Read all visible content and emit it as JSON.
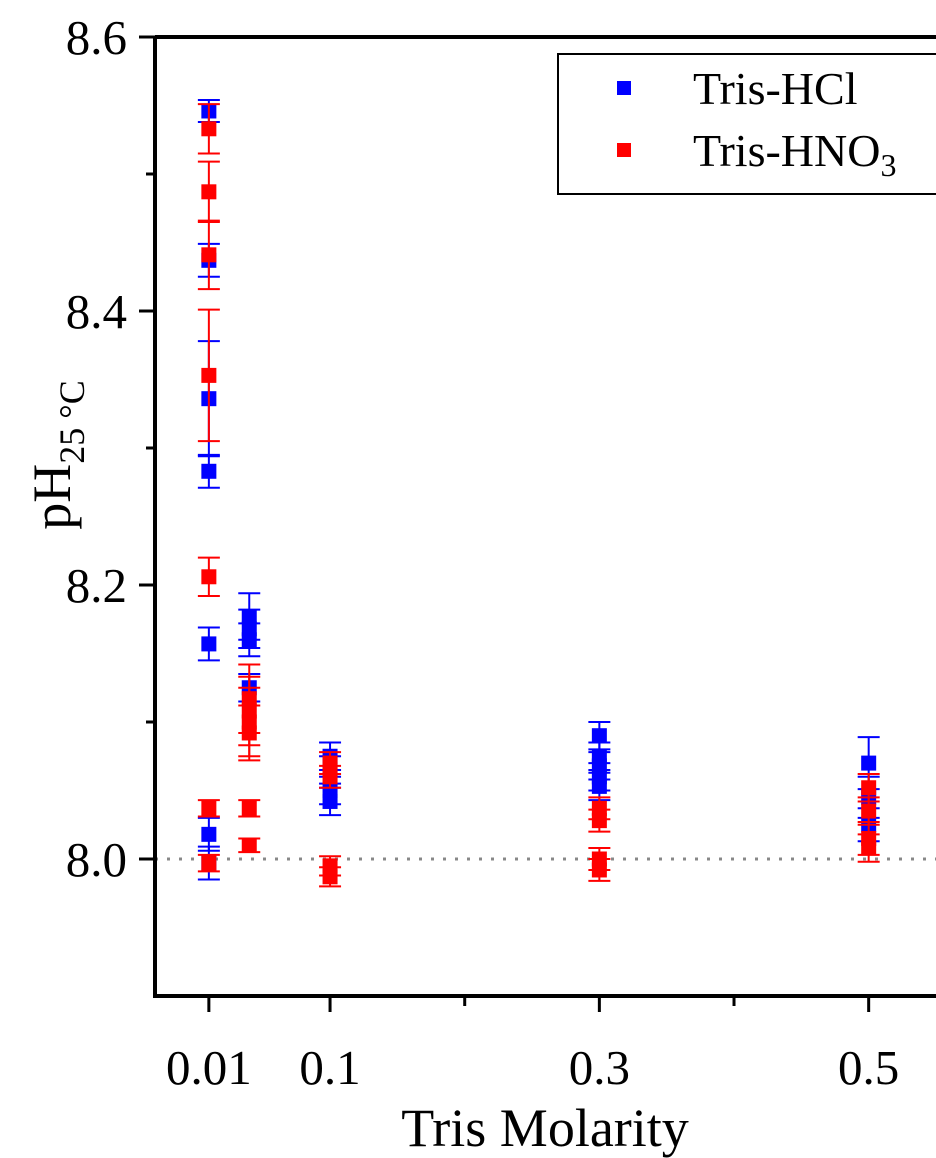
{
  "chart_data": {
    "type": "scatter",
    "title": "",
    "xlabel": "Tris Molarity",
    "ylabel": {
      "main": "pH",
      "subscript": "25 °C"
    },
    "xlim": [
      -0.03,
      0.55
    ],
    "ylim": [
      7.9,
      8.6
    ],
    "x_ticks": [
      {
        "value": 0.01,
        "label": "0.01"
      },
      {
        "value": 0.1,
        "label": "0.1"
      },
      {
        "value": 0.3,
        "label": "0.3"
      },
      {
        "value": 0.5,
        "label": "0.5"
      }
    ],
    "x_minor_ticks": [
      0.2,
      0.4
    ],
    "y_ticks": [
      {
        "value": 8.0,
        "label": "8.0"
      },
      {
        "value": 8.2,
        "label": "8.2"
      },
      {
        "value": 8.4,
        "label": "8.4"
      },
      {
        "value": 8.6,
        "label": "8.6"
      }
    ],
    "y_minor_ticks": [
      8.1,
      8.3,
      8.5
    ],
    "reference_line": {
      "y": 8.0,
      "style": "dotted",
      "color": "#888888"
    },
    "grid": false,
    "legend": {
      "position": "top-right",
      "frame": true
    },
    "series": [
      {
        "name": "Tris-HCl",
        "name_parts": {
          "main": "Tris-HCl",
          "subscript": ""
        },
        "color": "#0000ff",
        "marker": "square",
        "points": [
          {
            "x": 0.01,
            "y": 8.546,
            "err": 0.008
          },
          {
            "x": 0.01,
            "y": 8.437,
            "err": 0.012
          },
          {
            "x": 0.01,
            "y": 8.336,
            "err": 0.042
          },
          {
            "x": 0.01,
            "y": 8.283,
            "err": 0.012
          },
          {
            "x": 0.01,
            "y": 8.157,
            "err": 0.012
          },
          {
            "x": 0.01,
            "y": 8.018,
            "err": 0.012
          },
          {
            "x": 0.01,
            "y": 7.997,
            "err": 0.012
          },
          {
            "x": 0.04,
            "y": 8.177,
            "err": 0.017
          },
          {
            "x": 0.04,
            "y": 8.168,
            "err": 0.014
          },
          {
            "x": 0.04,
            "y": 8.16,
            "err": 0.012
          },
          {
            "x": 0.04,
            "y": 8.125,
            "err": 0.01
          },
          {
            "x": 0.1,
            "y": 8.075,
            "err": 0.01
          },
          {
            "x": 0.1,
            "y": 8.065,
            "err": 0.01
          },
          {
            "x": 0.1,
            "y": 8.05,
            "err": 0.01
          },
          {
            "x": 0.1,
            "y": 8.042,
            "err": 0.01
          },
          {
            "x": 0.3,
            "y": 8.09,
            "err": 0.01
          },
          {
            "x": 0.3,
            "y": 8.075,
            "err": 0.01
          },
          {
            "x": 0.3,
            "y": 8.068,
            "err": 0.01
          },
          {
            "x": 0.3,
            "y": 8.06,
            "err": 0.01
          },
          {
            "x": 0.3,
            "y": 8.053,
            "err": 0.01
          },
          {
            "x": 0.5,
            "y": 8.07,
            "err": 0.019
          },
          {
            "x": 0.5,
            "y": 8.045,
            "err": 0.015
          },
          {
            "x": 0.5,
            "y": 8.025,
            "err": 0.012
          }
        ]
      },
      {
        "name": "Tris-HNO3",
        "name_parts": {
          "main": "Tris-HNO",
          "subscript": "3"
        },
        "color": "#ff0000",
        "marker": "square",
        "points": [
          {
            "x": 0.01,
            "y": 8.533,
            "err": 0.018
          },
          {
            "x": 0.01,
            "y": 8.487,
            "err": 0.022
          },
          {
            "x": 0.01,
            "y": 8.441,
            "err": 0.025
          },
          {
            "x": 0.01,
            "y": 8.353,
            "err": 0.048
          },
          {
            "x": 0.01,
            "y": 8.206,
            "err": 0.014
          },
          {
            "x": 0.01,
            "y": 8.037,
            "err": 0.006
          },
          {
            "x": 0.01,
            "y": 7.997,
            "err": 0.006
          },
          {
            "x": 0.04,
            "y": 8.117,
            "err": 0.025
          },
          {
            "x": 0.04,
            "y": 8.108,
            "err": 0.025
          },
          {
            "x": 0.04,
            "y": 8.1,
            "err": 0.025
          },
          {
            "x": 0.04,
            "y": 8.092,
            "err": 0.02
          },
          {
            "x": 0.04,
            "y": 8.037,
            "err": 0.006
          },
          {
            "x": 0.04,
            "y": 8.01,
            "err": 0.005
          },
          {
            "x": 0.1,
            "y": 8.07,
            "err": 0.008
          },
          {
            "x": 0.1,
            "y": 8.06,
            "err": 0.008
          },
          {
            "x": 0.1,
            "y": 7.995,
            "err": 0.007
          },
          {
            "x": 0.1,
            "y": 7.987,
            "err": 0.007
          },
          {
            "x": 0.3,
            "y": 8.037,
            "err": 0.008
          },
          {
            "x": 0.3,
            "y": 8.028,
            "err": 0.008
          },
          {
            "x": 0.3,
            "y": 8.0,
            "err": 0.008
          },
          {
            "x": 0.3,
            "y": 7.992,
            "err": 0.008
          },
          {
            "x": 0.5,
            "y": 8.052,
            "err": 0.01
          },
          {
            "x": 0.5,
            "y": 8.035,
            "err": 0.01
          },
          {
            "x": 0.5,
            "y": 8.015,
            "err": 0.012
          },
          {
            "x": 0.5,
            "y": 8.008,
            "err": 0.01
          }
        ]
      }
    ]
  }
}
